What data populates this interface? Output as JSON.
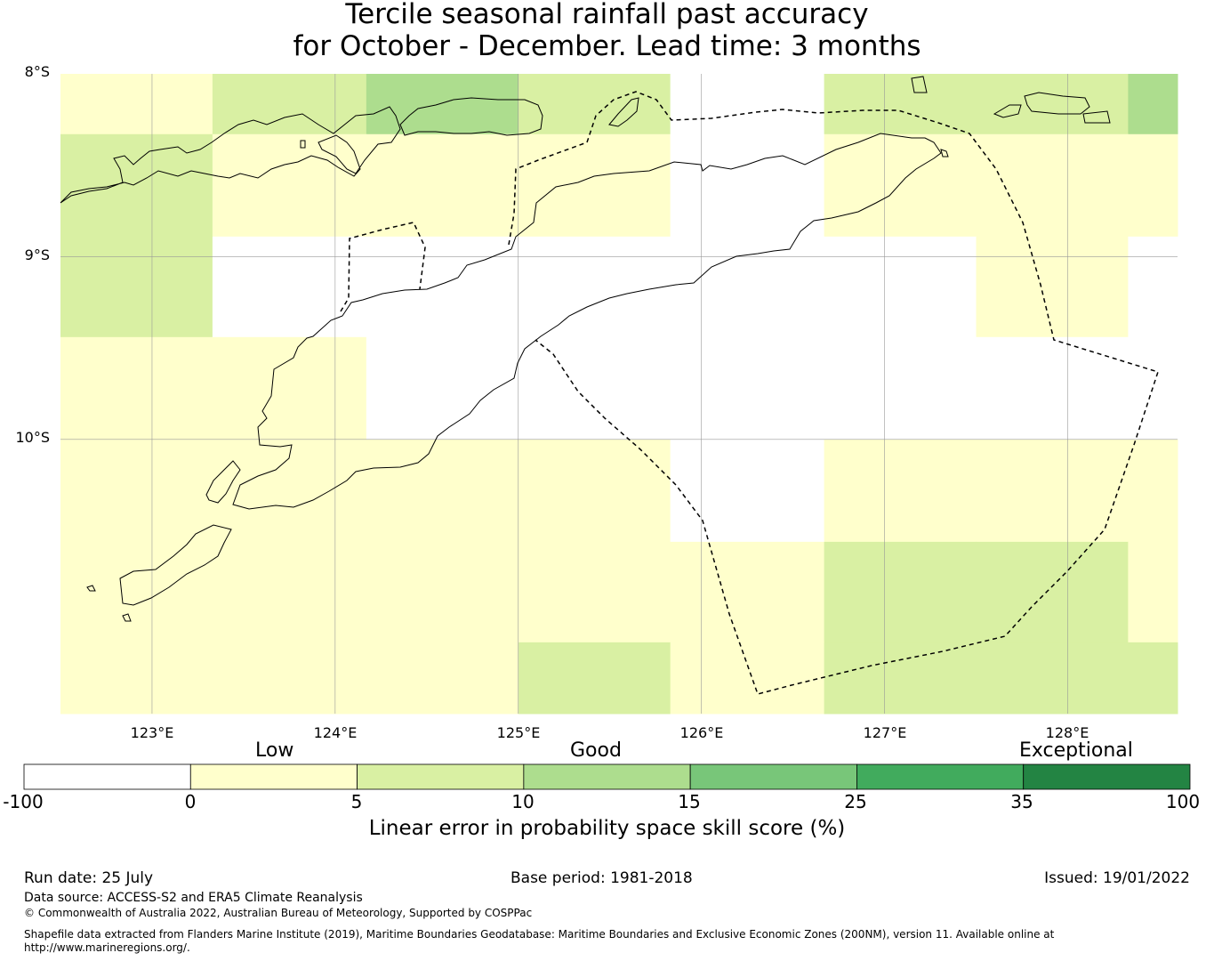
{
  "title": {
    "line1": "Tercile seasonal rainfall past accuracy",
    "line2": "for October - December. Lead time: 3 months"
  },
  "map": {
    "lon_range": [
      122.5,
      128.6
    ],
    "lat_range": [
      -11.5,
      -8.0
    ],
    "lat_ticks": [
      {
        "value": -8,
        "label": "8°S"
      },
      {
        "value": -9,
        "label": "9°S"
      },
      {
        "value": -10,
        "label": "10°S"
      }
    ],
    "lon_ticks": [
      {
        "value": 123,
        "label": "123°E"
      },
      {
        "value": 124,
        "label": "124°E"
      },
      {
        "value": 125,
        "label": "125°E"
      },
      {
        "value": 126,
        "label": "126°E"
      },
      {
        "value": 127,
        "label": "127°E"
      },
      {
        "value": 128,
        "label": "128°E"
      }
    ],
    "grid_lines": true,
    "skill_colors": {
      "below_0": "#ffffff",
      "0_5": "#ffffcc",
      "5_10": "#d9f0a3",
      "10_15": "#addd8e",
      "15_25": "#78c679",
      "25_35": "#41ab5d",
      "35_100": "#238443"
    },
    "grid_cells": {
      "lon_edges": [
        122.5,
        123.33,
        124.17,
        125.0,
        125.83,
        126.67,
        127.5,
        128.33,
        128.6
      ],
      "lat_edges": [
        -8.0,
        -8.33,
        -8.89,
        -9.44,
        -10.0,
        -10.56,
        -11.11,
        -11.5
      ],
      "categories": [
        [
          "0_5",
          "5_10",
          "10_15",
          "5_10",
          "below_0",
          "5_10",
          "5_10",
          "10_15"
        ],
        [
          "5_10",
          "0_5",
          "0_5",
          "0_5",
          "below_0",
          "0_5",
          "0_5",
          "0_5"
        ],
        [
          "5_10",
          "below_0",
          "below_0",
          "below_0",
          "below_0",
          "below_0",
          "0_5",
          "below_0"
        ],
        [
          "0_5",
          "0_5",
          "below_0",
          "below_0",
          "below_0",
          "below_0",
          "below_0",
          "below_0"
        ],
        [
          "0_5",
          "0_5",
          "0_5",
          "0_5",
          "below_0",
          "0_5",
          "0_5",
          "0_5"
        ],
        [
          "0_5",
          "0_5",
          "0_5",
          "0_5",
          "0_5",
          "5_10",
          "5_10",
          "0_5"
        ],
        [
          "0_5",
          "0_5",
          "0_5",
          "5_10",
          "0_5",
          "5_10",
          "5_10",
          "5_10"
        ]
      ]
    }
  },
  "colorbar": {
    "category_labels": [
      "Low",
      "Good",
      "Exceptional"
    ],
    "ticks": [
      "-100",
      "0",
      "5",
      "10",
      "15",
      "25",
      "35",
      "100"
    ],
    "colors": [
      "#ffffff",
      "#ffffcc",
      "#d9f0a3",
      "#addd8e",
      "#78c679",
      "#41ab5d",
      "#238443"
    ],
    "title": "Linear error in probability space skill score (%)"
  },
  "footer": {
    "run_date": "Run date: 25 July",
    "base_period": "Base period: 1981-2018",
    "issued": "Issued: 19/01/2022",
    "data_source": "Data source: ACCESS-S2 and ERA5 Climate Reanalysis",
    "copyright": "© Commonwealth of Australia 2022, Australian Bureau of Meteorology, Supported by COSPPac",
    "shapefile_line1": "Shapefile data extracted from Flanders Marine Institute (2019), Maritime Boundaries Geodatabase: Maritime Boundaries and Exclusive Economic Zones (200NM), version 11. Available online at",
    "shapefile_line2": "http://www.marineregions.org/."
  }
}
